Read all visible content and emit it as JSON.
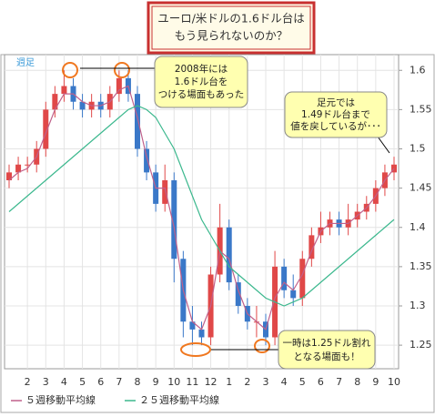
{
  "chart_data": {
    "type": "candlestick",
    "title": [
      "ユーロ/米ドルの1.6ドル台は",
      "もう見られないのか？"
    ],
    "period_label": "週足",
    "annotations": [
      [
        "2008年には",
        "1.6ドル台を",
        "つける場面もあった"
      ],
      [
        "足元では",
        "1.49ドル台まで",
        "値を戻しているが･･･"
      ],
      [
        "一時は1.25ドル割れ",
        "となる場面も！"
      ]
    ],
    "categories": [
      null,
      null,
      "2",
      null,
      "3",
      null,
      "4",
      null,
      "5",
      null,
      "6",
      null,
      "7",
      null,
      "8",
      null,
      "9",
      null,
      "10",
      null,
      "11",
      null,
      "12",
      null,
      "1",
      null,
      "2",
      null,
      "3",
      null,
      "4",
      null,
      "5",
      null,
      "6",
      null,
      "7",
      null,
      "8",
      null,
      "9",
      null,
      "10"
    ],
    "open": [
      1.46,
      1.47,
      1.48,
      1.48,
      1.5,
      1.55,
      1.57,
      1.58,
      1.56,
      1.55,
      1.56,
      1.55,
      1.57,
      1.59,
      1.57,
      1.5,
      1.47,
      1.43,
      1.46,
      1.36,
      1.28,
      1.27,
      1.26,
      1.34,
      1.4,
      1.33,
      1.3,
      1.28,
      1.28,
      1.26,
      1.35,
      1.32,
      1.31,
      1.36,
      1.39,
      1.4,
      1.41,
      1.4,
      1.41,
      1.42,
      1.43,
      1.45,
      1.47
    ],
    "high": [
      1.48,
      1.49,
      1.49,
      1.51,
      1.56,
      1.58,
      1.6,
      1.59,
      1.57,
      1.57,
      1.57,
      1.58,
      1.6,
      1.6,
      1.58,
      1.51,
      1.48,
      1.48,
      1.47,
      1.37,
      1.3,
      1.28,
      1.35,
      1.43,
      1.41,
      1.34,
      1.31,
      1.3,
      1.29,
      1.37,
      1.36,
      1.34,
      1.37,
      1.4,
      1.42,
      1.42,
      1.42,
      1.43,
      1.43,
      1.44,
      1.46,
      1.48,
      1.49
    ],
    "low": [
      1.45,
      1.46,
      1.47,
      1.47,
      1.49,
      1.54,
      1.56,
      1.55,
      1.54,
      1.54,
      1.54,
      1.54,
      1.56,
      1.56,
      1.49,
      1.46,
      1.42,
      1.42,
      1.33,
      1.26,
      1.25,
      1.25,
      1.25,
      1.33,
      1.32,
      1.29,
      1.27,
      1.26,
      1.25,
      1.25,
      1.31,
      1.3,
      1.3,
      1.35,
      1.38,
      1.39,
      1.39,
      1.39,
      1.4,
      1.41,
      1.42,
      1.44,
      1.46
    ],
    "close": [
      1.47,
      1.48,
      1.48,
      1.5,
      1.55,
      1.57,
      1.58,
      1.56,
      1.55,
      1.56,
      1.55,
      1.57,
      1.59,
      1.57,
      1.5,
      1.47,
      1.43,
      1.46,
      1.36,
      1.28,
      1.27,
      1.26,
      1.34,
      1.4,
      1.33,
      1.3,
      1.28,
      1.28,
      1.26,
      1.35,
      1.32,
      1.31,
      1.36,
      1.39,
      1.4,
      1.41,
      1.4,
      1.41,
      1.42,
      1.43,
      1.45,
      1.47,
      1.48
    ],
    "up_color": "#e04848",
    "down_color": "#3a78c8",
    "series": [
      {
        "name": "５週移動平均線",
        "color": "#c0608a",
        "values": [
          1.46,
          1.47,
          1.475,
          1.49,
          1.52,
          1.55,
          1.57,
          1.57,
          1.56,
          1.555,
          1.555,
          1.56,
          1.575,
          1.58,
          1.54,
          1.49,
          1.45,
          1.45,
          1.4,
          1.32,
          1.28,
          1.27,
          1.3,
          1.37,
          1.36,
          1.32,
          1.29,
          1.28,
          1.27,
          1.31,
          1.33,
          1.32,
          1.34,
          1.37,
          1.395,
          1.405,
          1.405,
          1.405,
          1.415,
          1.425,
          1.44,
          1.46,
          1.475
        ]
      },
      {
        "name": "２５週移動平均線",
        "color": "#3cb88e",
        "values": [
          1.42,
          1.43,
          1.44,
          1.45,
          1.46,
          1.47,
          1.48,
          1.49,
          1.5,
          1.51,
          1.52,
          1.53,
          1.54,
          1.55,
          1.555,
          1.55,
          1.54,
          1.52,
          1.5,
          1.47,
          1.44,
          1.41,
          1.39,
          1.37,
          1.35,
          1.34,
          1.33,
          1.32,
          1.31,
          1.305,
          1.3,
          1.305,
          1.31,
          1.32,
          1.33,
          1.34,
          1.35,
          1.36,
          1.37,
          1.38,
          1.39,
          1.4,
          1.41
        ]
      }
    ],
    "ylim": [
      1.22,
      1.62
    ],
    "yticks": [
      {
        "value": 1.25,
        "label": "1.25"
      },
      {
        "value": 1.3,
        "label": "1.3"
      },
      {
        "value": 1.35,
        "label": "1.35"
      },
      {
        "value": 1.4,
        "label": "1.4"
      },
      {
        "value": 1.45,
        "label": "1.45"
      },
      {
        "value": 1.5,
        "label": "1.5"
      },
      {
        "value": 1.55,
        "label": "1.55"
      },
      {
        "value": 1.6,
        "label": "1.6"
      }
    ],
    "grid": true
  }
}
